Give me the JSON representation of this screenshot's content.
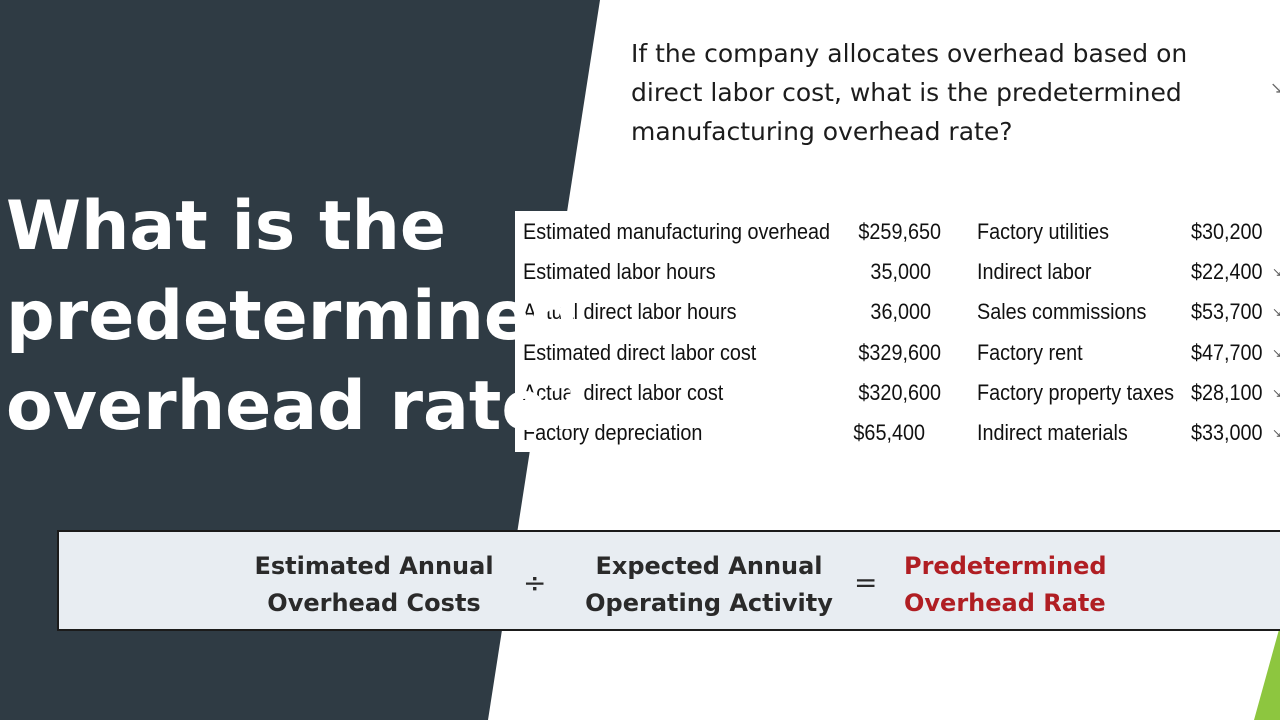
{
  "slide": {
    "title_lines": [
      "What is the",
      "predetermined",
      "overhead rate?"
    ],
    "question_lines": [
      "If the company allocates overhead based on",
      "direct labor cost, what is the predetermined",
      "manufacturing overhead rate?"
    ]
  },
  "data_table": {
    "rows": [
      {
        "label1": "Estimated manufacturing overhead",
        "value1": "$259,650",
        "label2": "Factory utilities",
        "value2": "$30,200"
      },
      {
        "label1": "Estimated labor hours",
        "value1": "35,000",
        "label2": "Indirect labor",
        "value2": "$22,400"
      },
      {
        "label1": "Actual direct labor hours",
        "value1": "36,000",
        "label2": "Sales commissions",
        "value2": "$53,700"
      },
      {
        "label1": "Estimated direct labor cost",
        "value1": "$329,600",
        "label2": "Factory rent",
        "value2": "$47,700"
      },
      {
        "label1": "Actual direct labor cost",
        "value1": "$320,600",
        "label2": "Factory property taxes",
        "value2": "$28,100"
      },
      {
        "label1": "Factory depreciation",
        "value1": "$65,400",
        "label2": "Indirect materials",
        "value2": "$33,000"
      }
    ]
  },
  "formula": {
    "term1_lines": [
      "Estimated Annual",
      "Overhead Costs"
    ],
    "divide_symbol": "÷",
    "term2_lines": [
      "Expected Annual",
      "Operating Activity"
    ],
    "equals_symbol": "=",
    "result_lines": [
      "Predetermined",
      "Overhead Rate"
    ]
  },
  "colors": {
    "dark_panel": "#2f3b44",
    "formula_background": "#e8edf2",
    "result_text": "#b01e23",
    "accent": "#8dc63f"
  },
  "icons": {
    "table_row_mark": "check-mark-icon"
  }
}
